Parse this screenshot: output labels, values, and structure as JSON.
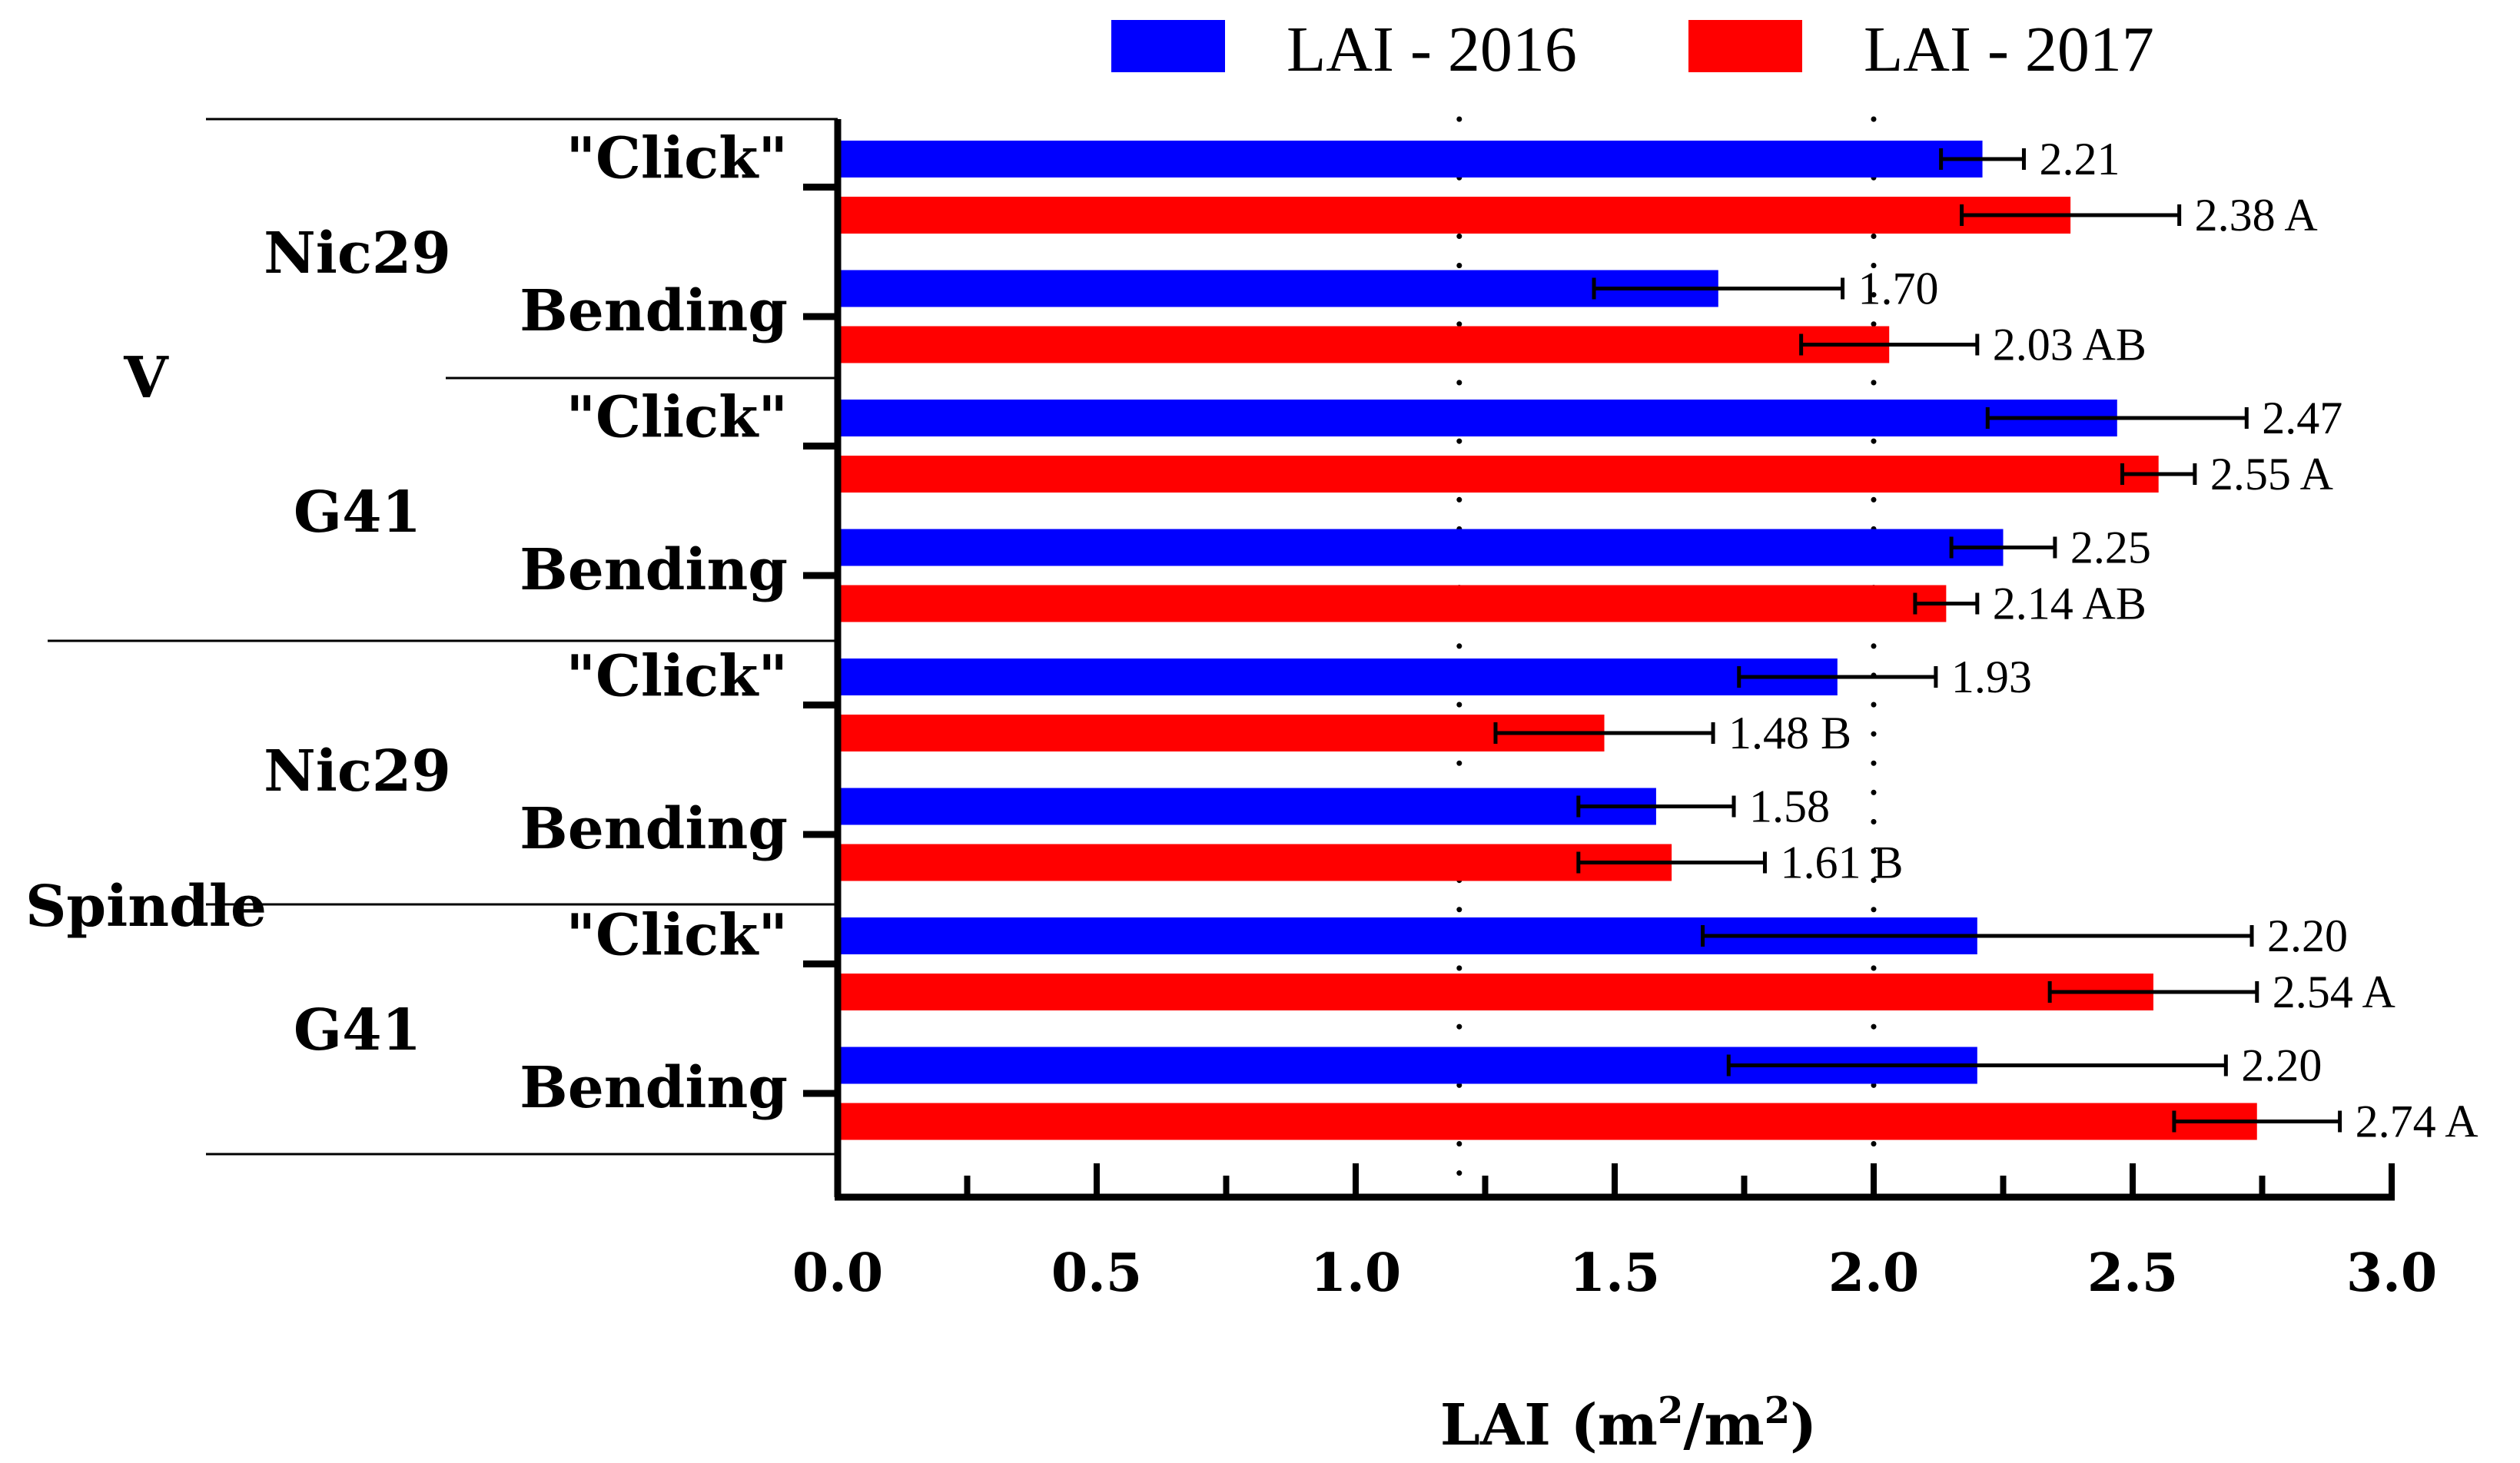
{
  "chart_data": {
    "type": "bar",
    "orientation": "horizontal",
    "title": "",
    "xlabel": "LAI (m²/m²)",
    "xlabel_parts": {
      "prefix": "LAI (m",
      "sup1": "2",
      "mid": "/m",
      "sup2": "2",
      "suffix": ")"
    },
    "xlim": [
      0,
      3.0
    ],
    "xticks": [
      "0.0",
      "0.5",
      "1.0",
      "1.5",
      "2.0",
      "2.5",
      "3.0"
    ],
    "xtick_values": [
      0,
      0.5,
      1.0,
      1.5,
      2.0,
      2.5,
      3.0
    ],
    "reference_lines": [
      1.2,
      2.0
    ],
    "legend_position": "top",
    "colors": {
      "LAI - 2016": "#0000ff",
      "LAI - 2017": "#ff0000"
    },
    "series": [
      {
        "name": "LAI - 2016",
        "color": "#0000ff"
      },
      {
        "name": "LAI - 2017",
        "color": "#ff0000"
      }
    ],
    "groups": [
      {
        "system": "V",
        "rootstock": "Nic29",
        "method": "\"Click\"",
        "values": [
          2.21,
          2.38
        ],
        "errors": [
          0.08,
          0.21
        ],
        "labels": [
          "2.21",
          "2.38 A"
        ]
      },
      {
        "system": "V",
        "rootstock": "Nic29",
        "method": "Bending",
        "values": [
          1.7,
          2.03
        ],
        "errors": [
          0.24,
          0.17
        ],
        "labels": [
          "1.70",
          "2.03 AB"
        ]
      },
      {
        "system": "V",
        "rootstock": "G41",
        "method": "\"Click\"",
        "values": [
          2.47,
          2.55
        ],
        "errors": [
          0.25,
          0.07
        ],
        "labels": [
          "2.47",
          "2.55 A"
        ]
      },
      {
        "system": "V",
        "rootstock": "G41",
        "method": "Bending",
        "values": [
          2.25,
          2.14
        ],
        "errors": [
          0.1,
          0.06
        ],
        "labels": [
          "2.25",
          "2.14 AB"
        ]
      },
      {
        "system": "Spindle",
        "rootstock": "Nic29",
        "method": "\"Click\"",
        "values": [
          1.93,
          1.48
        ],
        "errors": [
          0.19,
          0.21
        ],
        "labels": [
          "1.93",
          "1.48 B"
        ]
      },
      {
        "system": "Spindle",
        "rootstock": "Nic29",
        "method": "Bending",
        "values": [
          1.58,
          1.61
        ],
        "errors": [
          0.15,
          0.18
        ],
        "labels": [
          "1.58",
          "1.61 B"
        ]
      },
      {
        "system": "Spindle",
        "rootstock": "G41",
        "method": "\"Click\"",
        "values": [
          2.2,
          2.54
        ],
        "errors": [
          0.53,
          0.2
        ],
        "labels": [
          "2.20",
          "2.54 A"
        ]
      },
      {
        "system": "Spindle",
        "rootstock": "G41",
        "method": "Bending",
        "values": [
          2.2,
          2.74
        ],
        "errors": [
          0.48,
          0.16
        ],
        "labels": [
          "2.20",
          "2.74 A"
        ]
      }
    ],
    "rootstock_groups": [
      {
        "label": "Nic29",
        "system": "V"
      },
      {
        "label": "G41",
        "system": "V"
      },
      {
        "label": "Nic29",
        "system": "Spindle"
      },
      {
        "label": "G41",
        "system": "Spindle"
      }
    ],
    "systems": [
      "V",
      "Spindle"
    ]
  }
}
